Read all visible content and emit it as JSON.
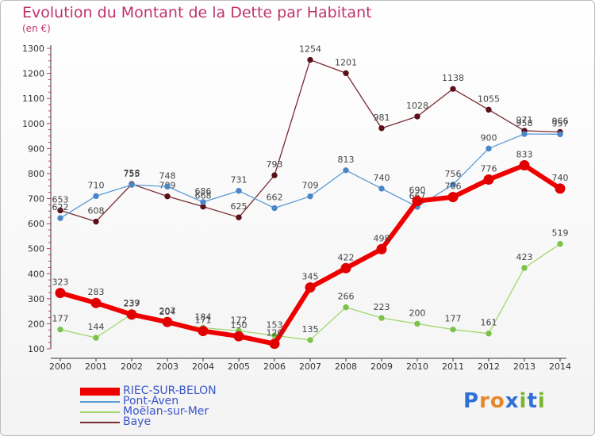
{
  "title": "Evolution du Montant de la Dette par Habitant",
  "subtitle": "(en €)",
  "logo": {
    "text": "Proxiti",
    "letters": [
      "P",
      "r",
      "o",
      "x",
      "i",
      "t",
      "i"
    ],
    "colors": [
      "#2f6fd6",
      "#e8862c",
      "#e8862c",
      "#2f6fd6",
      "#79b52e",
      "#2f6fd6",
      "#79b52e"
    ]
  },
  "chart_data": {
    "type": "line",
    "categories": [
      "2000",
      "2001",
      "2002",
      "2003",
      "2004",
      "2005",
      "2006",
      "2007",
      "2008",
      "2009",
      "2010",
      "2011",
      "2012",
      "2013",
      "2014"
    ],
    "ylim": [
      100,
      1300
    ],
    "yticks": [
      100,
      200,
      300,
      400,
      500,
      600,
      700,
      800,
      900,
      1000,
      1100,
      1200,
      1300
    ],
    "grid": false,
    "legend_position": "bottom-left",
    "series": [
      {
        "name": "Baye",
        "color": "#7a2a32",
        "marker": "#5a1018",
        "values": [
          653,
          608,
          758,
          709,
          668,
          625,
          793,
          1254,
          1201,
          981,
          1028,
          1138,
          1055,
          971,
          966
        ]
      },
      {
        "name": "Pont-Aven",
        "color": "#5b9bd5",
        "marker": "#4a86c8",
        "values": [
          622,
          710,
          755,
          748,
          686,
          731,
          662,
          709,
          813,
          740,
          667,
          756,
          900,
          958,
          957
        ]
      },
      {
        "name": "Moëlan-sur-Mer",
        "color": "#9fd86a",
        "marker": "#7cc24a",
        "values": [
          177,
          144,
          239,
          204,
          184,
          172,
          153,
          135,
          266,
          223,
          200,
          177,
          161,
          423,
          519
        ]
      },
      {
        "name": "RIEC-SUR-BELON",
        "color": "#ee0000",
        "marker": "#e00000",
        "values": [
          323,
          283,
          237,
          207,
          171,
          150,
          120,
          345,
          422,
          498,
          690,
          706,
          776,
          833,
          740
        ]
      }
    ],
    "legend_order": [
      "RIEC-SUR-BELON",
      "Pont-Aven",
      "Moëlan-sur-Mer",
      "Baye"
    ]
  }
}
